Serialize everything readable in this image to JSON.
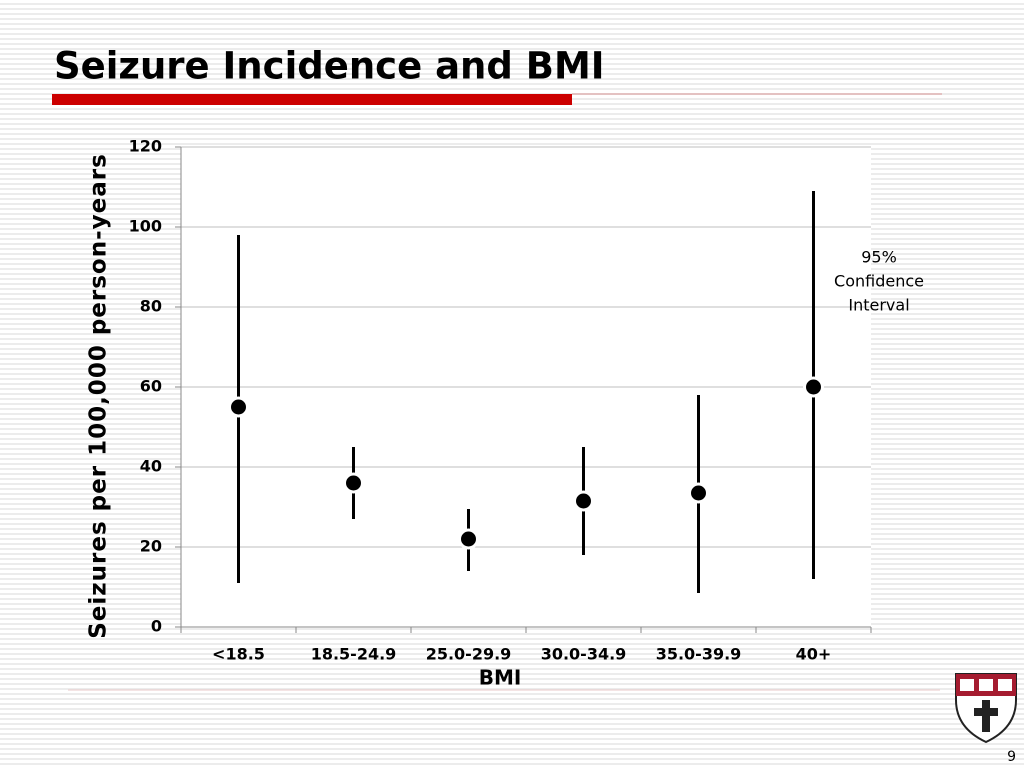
{
  "slide": {
    "page_number": "9"
  },
  "chart_data": {
    "type": "errorbar",
    "title": "Seizure Incidence and BMI",
    "x_label": "BMI",
    "y_label": "Seizures per 100,000 person-years",
    "categories": [
      "<18.5",
      "18.5-24.9",
      "25.0-29.9",
      "30.0-34.9",
      "35.0-39.9",
      "40+"
    ],
    "values": [
      55,
      36,
      22,
      31.5,
      33.5,
      60
    ],
    "lower": [
      11,
      27,
      14,
      18,
      8.5,
      12
    ],
    "upper": [
      98,
      45,
      29.5,
      45,
      58,
      109
    ],
    "color": "#000000",
    "ylim": [
      0,
      120
    ],
    "yticks": [
      0,
      20,
      40,
      60,
      80,
      100,
      120
    ],
    "grid": true,
    "annotation": [
      "95%",
      "Confidence",
      "Interval"
    ]
  }
}
